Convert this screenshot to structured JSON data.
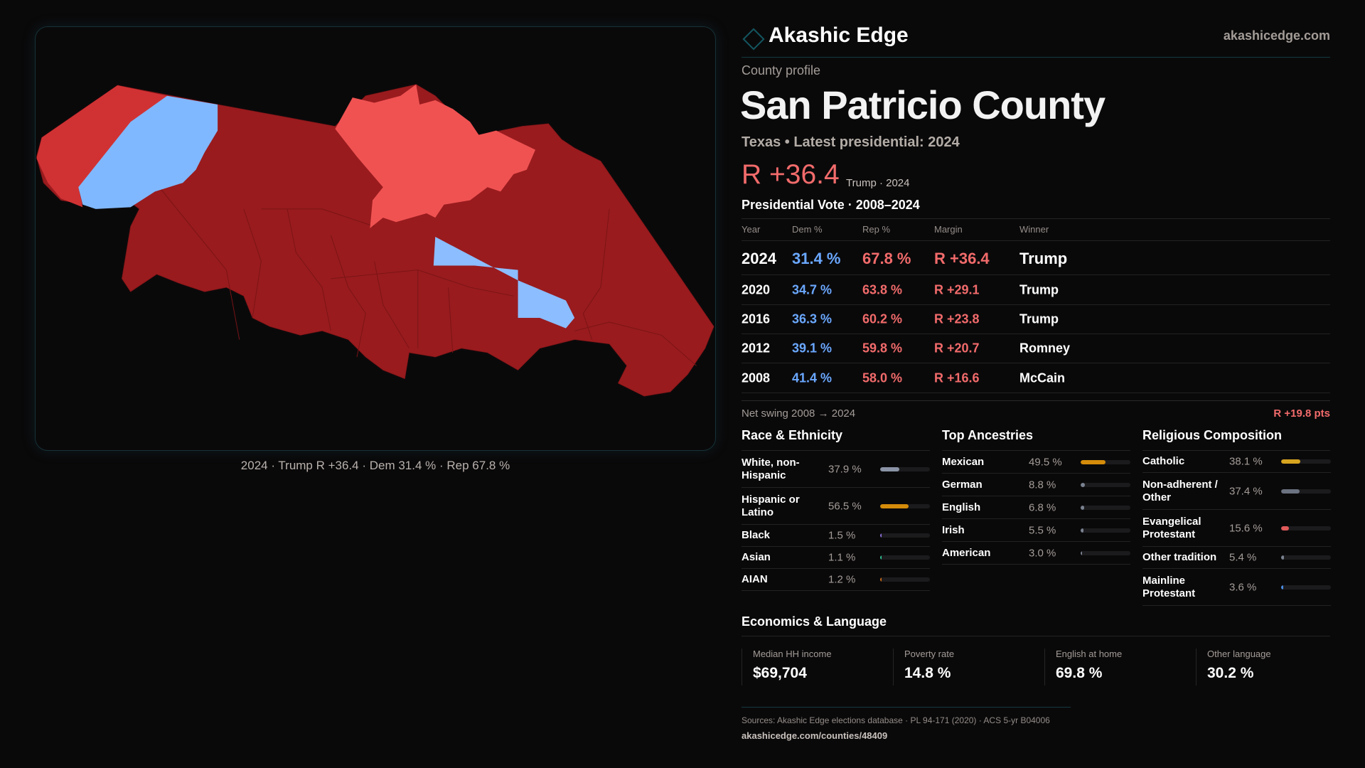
{
  "brand": {
    "name": "Akashic Edge",
    "url": "akashicedge.com"
  },
  "map": {
    "caption": "2024 · Trump R +36.4 · Dem 31.4 % · Rep 67.8 %",
    "colors": {
      "strong_rep": "#991b1e",
      "lean_rep": "#d03234",
      "mid_rep": "#f05252",
      "dem": "#80b8ff"
    }
  },
  "profile": {
    "eyebrow": "County profile",
    "title": "San Patricio County",
    "subtitle": "Texas • Latest presidential: 2024",
    "margin": "R +36.4",
    "margin_sub": "Trump · 2024"
  },
  "votes": {
    "title": "Presidential Vote · 2008–2024",
    "headers": [
      "Year",
      "Dem %",
      "Rep %",
      "Margin",
      "Winner"
    ],
    "rows": [
      [
        "2024",
        "31.4 %",
        "67.8 %",
        "R +36.4",
        "Trump"
      ],
      [
        "2020",
        "34.7 %",
        "63.8 %",
        "R +29.1",
        "Trump"
      ],
      [
        "2016",
        "36.3 %",
        "60.2 %",
        "R +23.8",
        "Trump"
      ],
      [
        "2012",
        "39.1 %",
        "59.8 %",
        "R +20.7",
        "Romney"
      ],
      [
        "2008",
        "41.4 %",
        "58.0 %",
        "R +16.6",
        "McCain"
      ]
    ],
    "swing_label": "Net swing 2008 → 2024",
    "swing_value": "R +19.8 pts"
  },
  "race": {
    "title": "Race & Ethnicity",
    "items": [
      {
        "label": "White, non-Hispanic",
        "pct": "37.9 %",
        "value": 37.9,
        "color": "#8a94a6"
      },
      {
        "label": "Hispanic or Latino",
        "pct": "56.5 %",
        "value": 56.5,
        "color": "#d48c0a"
      },
      {
        "label": "Black",
        "pct": "1.5 %",
        "value": 1.5,
        "color": "#8b6fd6"
      },
      {
        "label": "Asian",
        "pct": "1.1 %",
        "value": 1.1,
        "color": "#2fbf8f"
      },
      {
        "label": "AIAN",
        "pct": "1.2 %",
        "value": 1.2,
        "color": "#c86a1a"
      }
    ]
  },
  "ancestry": {
    "title": "Top Ancestries",
    "items": [
      {
        "label": "Mexican",
        "pct": "49.5 %",
        "value": 49.5,
        "color": "#d48c0a"
      },
      {
        "label": "German",
        "pct": "8.8 %",
        "value": 8.8,
        "color": "#7a8290"
      },
      {
        "label": "English",
        "pct": "6.8 %",
        "value": 6.8,
        "color": "#7a8290"
      },
      {
        "label": "Irish",
        "pct": "5.5 %",
        "value": 5.5,
        "color": "#7a8290"
      },
      {
        "label": "American",
        "pct": "3.0 %",
        "value": 3.0,
        "color": "#7a8290"
      }
    ]
  },
  "religion": {
    "title": "Religious Composition",
    "items": [
      {
        "label": "Catholic",
        "pct": "38.1 %",
        "value": 38.1,
        "color": "#d8a520"
      },
      {
        "label": "Non-adherent / Other",
        "pct": "37.4 %",
        "value": 37.4,
        "color": "#6b7280"
      },
      {
        "label": "Evangelical Protestant",
        "pct": "15.6 %",
        "value": 15.6,
        "color": "#e05a5a"
      },
      {
        "label": "Other tradition",
        "pct": "5.4 %",
        "value": 5.4,
        "color": "#7a8290"
      },
      {
        "label": "Mainline Protestant",
        "pct": "3.6 %",
        "value": 3.6,
        "color": "#4a8be0"
      }
    ]
  },
  "econ": {
    "title": "Economics & Language",
    "cards": [
      {
        "label": "Median HH income",
        "value": "$69,704"
      },
      {
        "label": "Poverty rate",
        "value": "14.8 %"
      },
      {
        "label": "English at home",
        "value": "69.8 %"
      },
      {
        "label": "Other language",
        "value": "30.2 %"
      }
    ]
  },
  "footer": {
    "sources": "Sources: Akashic Edge elections database · PL 94-171 (2020) · ACS 5-yr B04006",
    "link": "akashicedge.com/counties/48409"
  }
}
